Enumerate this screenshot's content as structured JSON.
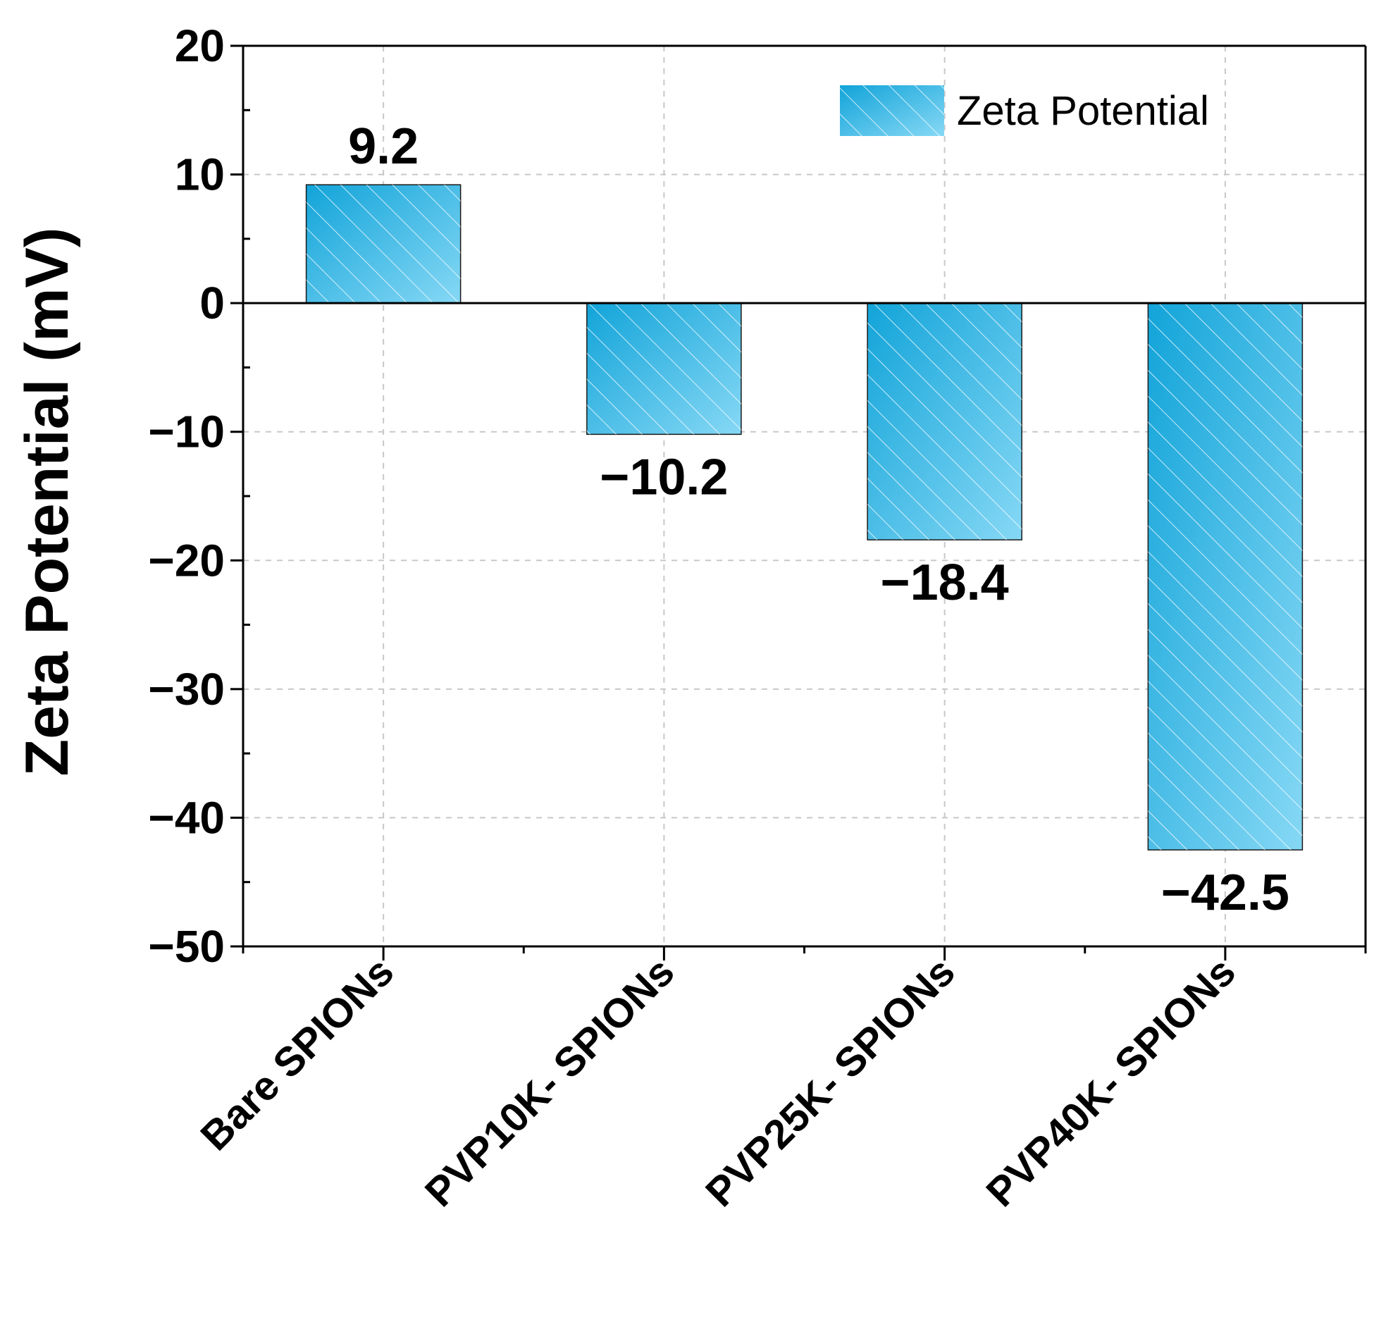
{
  "chart_data": {
    "type": "bar",
    "title": "",
    "xlabel": "",
    "ylabel": "Zeta Potential (mV)",
    "ylim": [
      -50,
      20
    ],
    "yticks": [
      20,
      10,
      0,
      -10,
      -20,
      -30,
      -40,
      -50
    ],
    "ytick_labels": [
      "20",
      "10",
      "0",
      "−10",
      "−20",
      "−30",
      "−40",
      "−50"
    ],
    "grid": true,
    "legend_position": "top-right",
    "categories": [
      "Bare SPIONs",
      "PVP10K- SPIONs",
      "PVP25K- SPIONs",
      "PVP40K- SPIONs"
    ],
    "series": [
      {
        "name": "Zeta Potential",
        "values": [
          9.2,
          -10.2,
          -18.4,
          -42.5
        ],
        "value_labels": [
          "9.2",
          "−10.2",
          "−18.4",
          "−42.5"
        ]
      }
    ],
    "colors": {
      "bar_dark": "#12a4d9",
      "bar_light": "#86d8f5",
      "bar_edge": "#1a1a1a",
      "grid": "#c8c8c8",
      "axis": "#000000"
    }
  }
}
